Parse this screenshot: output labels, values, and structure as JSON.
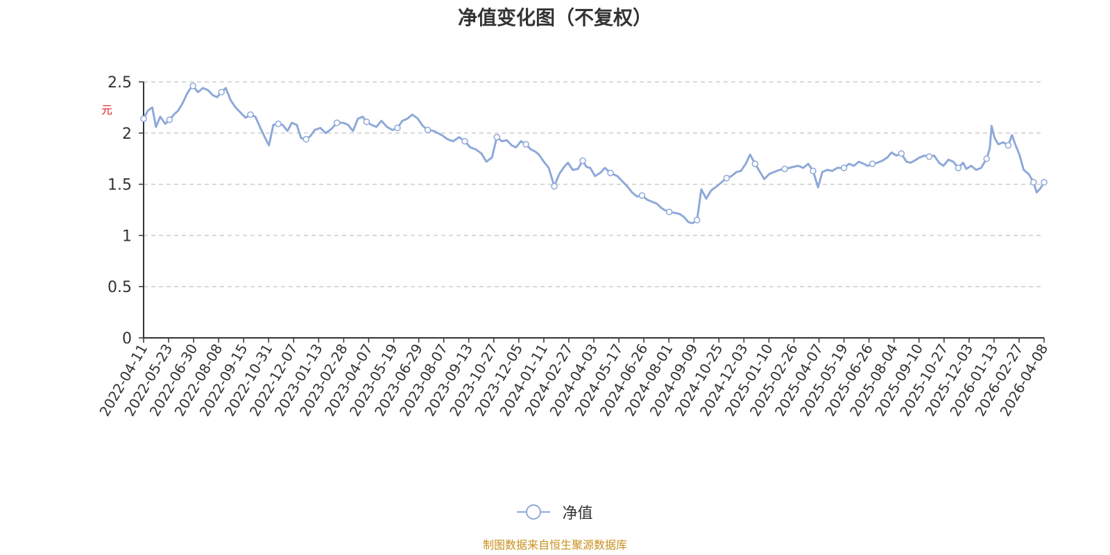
{
  "chart_data": {
    "type": "line",
    "title": "净值变化图（不复权）",
    "ylabel": "元",
    "ylim": [
      0,
      2.5
    ],
    "yticks": [
      "0",
      "0.5",
      "1",
      "1.5",
      "2",
      "2.5"
    ],
    "grid": true,
    "legend_position": "bottom-center",
    "colors": {
      "line": "#8ea9d8",
      "grid": "#cccccc",
      "axis": "#333333",
      "unit": "#e02020"
    },
    "x_tick_labels": [
      "2022-04-11",
      "2022-05-23",
      "2022-06-30",
      "2022-08-08",
      "2022-09-15",
      "2022-10-31",
      "2022-12-07",
      "2023-01-13",
      "2023-02-28",
      "2023-04-07",
      "2023-05-19",
      "2023-06-29",
      "2023-08-07",
      "2023-09-13",
      "2023-10-27",
      "2023-12-05",
      "2024-01-11",
      "2024-02-27",
      "2024-04-03",
      "2024-05-17",
      "2024-06-26",
      "2024-08-01",
      "2024-09-09",
      "2024-10-25",
      "2024-12-03",
      "2025-01-10",
      "2025-02-26",
      "2025-04-07",
      "2025-05-19",
      "2025-06-26",
      "2025-08-04",
      "2025-09-10",
      "2025-10-27",
      "2025-12-03",
      "2026-01-13",
      "2026-02-27",
      "2026-04-08"
    ],
    "series": [
      {
        "name": "净值",
        "values": [
          [
            "2022-04-11",
            2.14
          ],
          [
            "2022-04-18",
            2.22
          ],
          [
            "2022-04-25",
            2.25
          ],
          [
            "2022-05-01",
            2.06
          ],
          [
            "2022-05-08",
            2.16
          ],
          [
            "2022-05-16",
            2.09
          ],
          [
            "2022-05-23",
            2.13
          ],
          [
            "2022-05-30",
            2.18
          ],
          [
            "2022-06-06",
            2.22
          ],
          [
            "2022-06-13",
            2.29
          ],
          [
            "2022-06-20",
            2.38
          ],
          [
            "2022-06-25",
            2.43
          ],
          [
            "2022-06-30",
            2.46
          ],
          [
            "2022-07-08",
            2.4
          ],
          [
            "2022-07-16",
            2.44
          ],
          [
            "2022-07-24",
            2.42
          ],
          [
            "2022-08-01",
            2.37
          ],
          [
            "2022-08-08",
            2.35
          ],
          [
            "2022-08-15",
            2.4
          ],
          [
            "2022-08-22",
            2.44
          ],
          [
            "2022-08-30",
            2.32
          ],
          [
            "2022-09-07",
            2.25
          ],
          [
            "2022-09-15",
            2.2
          ],
          [
            "2022-09-23",
            2.15
          ],
          [
            "2022-10-01",
            2.18
          ],
          [
            "2022-10-09",
            2.16
          ],
          [
            "2022-10-17",
            2.05
          ],
          [
            "2022-10-25",
            1.95
          ],
          [
            "2022-10-31",
            1.88
          ],
          [
            "2022-11-07",
            2.08
          ],
          [
            "2022-11-15",
            2.09
          ],
          [
            "2022-11-22",
            2.08
          ],
          [
            "2022-11-30",
            2.02
          ],
          [
            "2022-12-07",
            2.1
          ],
          [
            "2022-12-15",
            2.08
          ],
          [
            "2022-12-22",
            1.95
          ],
          [
            "2022-12-30",
            1.94
          ],
          [
            "2023-01-06",
            1.97
          ],
          [
            "2023-01-13",
            2.03
          ],
          [
            "2023-01-22",
            2.05
          ],
          [
            "2023-01-31",
            2.0
          ],
          [
            "2023-02-09",
            2.04
          ],
          [
            "2023-02-18",
            2.1
          ],
          [
            "2023-02-28",
            2.1
          ],
          [
            "2023-03-08",
            2.08
          ],
          [
            "2023-03-16",
            2.02
          ],
          [
            "2023-03-24",
            2.14
          ],
          [
            "2023-04-01",
            2.16
          ],
          [
            "2023-04-07",
            2.11
          ],
          [
            "2023-04-15",
            2.08
          ],
          [
            "2023-04-23",
            2.06
          ],
          [
            "2023-05-01",
            2.12
          ],
          [
            "2023-05-10",
            2.06
          ],
          [
            "2023-05-19",
            2.03
          ],
          [
            "2023-05-27",
            2.05
          ],
          [
            "2023-06-04",
            2.12
          ],
          [
            "2023-06-12",
            2.14
          ],
          [
            "2023-06-20",
            2.18
          ],
          [
            "2023-06-29",
            2.14
          ],
          [
            "2023-07-07",
            2.07
          ],
          [
            "2023-07-15",
            2.03
          ],
          [
            "2023-07-25",
            2.02
          ],
          [
            "2023-08-07",
            1.98
          ],
          [
            "2023-08-16",
            1.94
          ],
          [
            "2023-08-25",
            1.92
          ],
          [
            "2023-09-04",
            1.96
          ],
          [
            "2023-09-13",
            1.92
          ],
          [
            "2023-09-22",
            1.86
          ],
          [
            "2023-10-01",
            1.84
          ],
          [
            "2023-10-10",
            1.8
          ],
          [
            "2023-10-18",
            1.72
          ],
          [
            "2023-10-27",
            1.76
          ],
          [
            "2023-11-04",
            1.96
          ],
          [
            "2023-11-12",
            1.92
          ],
          [
            "2023-11-20",
            1.93
          ],
          [
            "2023-11-28",
            1.88
          ],
          [
            "2023-12-05",
            1.86
          ],
          [
            "2023-12-13",
            1.92
          ],
          [
            "2023-12-21",
            1.89
          ],
          [
            "2023-12-29",
            1.84
          ],
          [
            "2024-01-05",
            1.82
          ],
          [
            "2024-01-11",
            1.79
          ],
          [
            "2024-01-19",
            1.72
          ],
          [
            "2024-01-27",
            1.66
          ],
          [
            "2024-02-05",
            1.48
          ],
          [
            "2024-02-13",
            1.6
          ],
          [
            "2024-02-21",
            1.67
          ],
          [
            "2024-02-27",
            1.71
          ],
          [
            "2024-03-06",
            1.64
          ],
          [
            "2024-03-14",
            1.65
          ],
          [
            "2024-03-22",
            1.73
          ],
          [
            "2024-03-28",
            1.67
          ],
          [
            "2024-04-03",
            1.66
          ],
          [
            "2024-04-11",
            1.58
          ],
          [
            "2024-04-19",
            1.61
          ],
          [
            "2024-04-27",
            1.66
          ],
          [
            "2024-05-06",
            1.61
          ],
          [
            "2024-05-17",
            1.58
          ],
          [
            "2024-05-25",
            1.53
          ],
          [
            "2024-06-02",
            1.48
          ],
          [
            "2024-06-10",
            1.42
          ],
          [
            "2024-06-18",
            1.38
          ],
          [
            "2024-06-26",
            1.39
          ],
          [
            "2024-07-04",
            1.35
          ],
          [
            "2024-07-12",
            1.33
          ],
          [
            "2024-07-20",
            1.31
          ],
          [
            "2024-07-27",
            1.27
          ],
          [
            "2024-08-01",
            1.25
          ],
          [
            "2024-08-09",
            1.23
          ],
          [
            "2024-08-18",
            1.22
          ],
          [
            "2024-08-26",
            1.21
          ],
          [
            "2024-09-02",
            1.18
          ],
          [
            "2024-09-09",
            1.13
          ],
          [
            "2024-09-16",
            1.12
          ],
          [
            "2024-09-23",
            1.15
          ],
          [
            "2024-09-30",
            1.45
          ],
          [
            "2024-10-08",
            1.36
          ],
          [
            "2024-10-16",
            1.44
          ],
          [
            "2024-10-25",
            1.48
          ],
          [
            "2024-11-02",
            1.52
          ],
          [
            "2024-11-10",
            1.56
          ],
          [
            "2024-11-18",
            1.58
          ],
          [
            "2024-11-26",
            1.62
          ],
          [
            "2024-12-03",
            1.63
          ],
          [
            "2024-12-11",
            1.7
          ],
          [
            "2024-12-18",
            1.79
          ],
          [
            "2024-12-26",
            1.7
          ],
          [
            "2025-01-03",
            1.62
          ],
          [
            "2025-01-10",
            1.55
          ],
          [
            "2025-01-18",
            1.6
          ],
          [
            "2025-01-26",
            1.62
          ],
          [
            "2025-02-04",
            1.64
          ],
          [
            "2025-02-12",
            1.65
          ],
          [
            "2025-02-20",
            1.66
          ],
          [
            "2025-02-26",
            1.67
          ],
          [
            "2025-03-06",
            1.68
          ],
          [
            "2025-03-14",
            1.66
          ],
          [
            "2025-03-22",
            1.7
          ],
          [
            "2025-03-30",
            1.63
          ],
          [
            "2025-04-07",
            1.47
          ],
          [
            "2025-04-14",
            1.62
          ],
          [
            "2025-04-22",
            1.64
          ],
          [
            "2025-04-30",
            1.63
          ],
          [
            "2025-05-08",
            1.66
          ],
          [
            "2025-05-19",
            1.66
          ],
          [
            "2025-05-27",
            1.7
          ],
          [
            "2025-06-04",
            1.68
          ],
          [
            "2025-06-12",
            1.72
          ],
          [
            "2025-06-20",
            1.7
          ],
          [
            "2025-06-26",
            1.68
          ],
          [
            "2025-07-04",
            1.7
          ],
          [
            "2025-07-12",
            1.71
          ],
          [
            "2025-07-20",
            1.73
          ],
          [
            "2025-07-28",
            1.76
          ],
          [
            "2025-08-04",
            1.81
          ],
          [
            "2025-08-12",
            1.78
          ],
          [
            "2025-08-20",
            1.8
          ],
          [
            "2025-08-28",
            1.72
          ],
          [
            "2025-09-04",
            1.71
          ],
          [
            "2025-09-10",
            1.73
          ],
          [
            "2025-09-18",
            1.76
          ],
          [
            "2025-09-26",
            1.78
          ],
          [
            "2025-10-04",
            1.77
          ],
          [
            "2025-10-12",
            1.78
          ],
          [
            "2025-10-20",
            1.71
          ],
          [
            "2025-10-27",
            1.68
          ],
          [
            "2025-11-04",
            1.74
          ],
          [
            "2025-11-12",
            1.72
          ],
          [
            "2025-11-20",
            1.66
          ],
          [
            "2025-11-28",
            1.71
          ],
          [
            "2025-12-03",
            1.65
          ],
          [
            "2025-12-11",
            1.68
          ],
          [
            "2025-12-19",
            1.64
          ],
          [
            "2025-12-27",
            1.66
          ],
          [
            "2026-01-05",
            1.75
          ],
          [
            "2026-01-10",
            1.85
          ],
          [
            "2026-01-13",
            2.07
          ],
          [
            "2026-01-18",
            1.95
          ],
          [
            "2026-01-24",
            1.89
          ],
          [
            "2026-02-01",
            1.91
          ],
          [
            "2026-02-09",
            1.88
          ],
          [
            "2026-02-15",
            1.98
          ],
          [
            "2026-02-21",
            1.88
          ],
          [
            "2026-02-27",
            1.79
          ],
          [
            "2026-03-06",
            1.64
          ],
          [
            "2026-03-14",
            1.6
          ],
          [
            "2026-03-22",
            1.52
          ],
          [
            "2026-03-27",
            1.42
          ],
          [
            "2026-04-02",
            1.46
          ],
          [
            "2026-04-08",
            1.52
          ]
        ]
      }
    ],
    "source_note": "制图数据来自恒生聚源数据库"
  }
}
